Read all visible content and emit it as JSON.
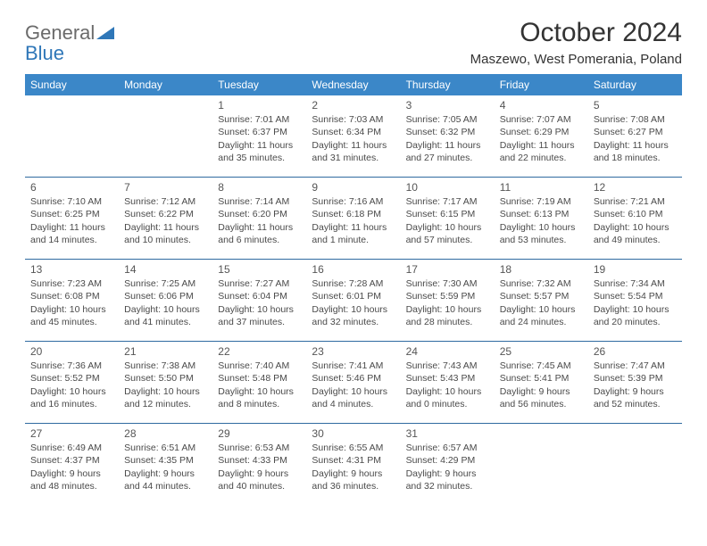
{
  "logo": {
    "text1": "General",
    "text2": "Blue"
  },
  "title": "October 2024",
  "location": "Maszewo, West Pomerania, Poland",
  "colors": {
    "header_bg": "#3b87c8",
    "header_text": "#ffffff",
    "rule": "#2f6aa0",
    "logo_gray": "#6b6b6b",
    "logo_blue": "#2f77b8",
    "body_text": "#4a4a4a"
  },
  "days": [
    "Sunday",
    "Monday",
    "Tuesday",
    "Wednesday",
    "Thursday",
    "Friday",
    "Saturday"
  ],
  "weeks": [
    [
      null,
      null,
      {
        "n": "1",
        "sr": "Sunrise: 7:01 AM",
        "ss": "Sunset: 6:37 PM",
        "d1": "Daylight: 11 hours",
        "d2": "and 35 minutes."
      },
      {
        "n": "2",
        "sr": "Sunrise: 7:03 AM",
        "ss": "Sunset: 6:34 PM",
        "d1": "Daylight: 11 hours",
        "d2": "and 31 minutes."
      },
      {
        "n": "3",
        "sr": "Sunrise: 7:05 AM",
        "ss": "Sunset: 6:32 PM",
        "d1": "Daylight: 11 hours",
        "d2": "and 27 minutes."
      },
      {
        "n": "4",
        "sr": "Sunrise: 7:07 AM",
        "ss": "Sunset: 6:29 PM",
        "d1": "Daylight: 11 hours",
        "d2": "and 22 minutes."
      },
      {
        "n": "5",
        "sr": "Sunrise: 7:08 AM",
        "ss": "Sunset: 6:27 PM",
        "d1": "Daylight: 11 hours",
        "d2": "and 18 minutes."
      }
    ],
    [
      {
        "n": "6",
        "sr": "Sunrise: 7:10 AM",
        "ss": "Sunset: 6:25 PM",
        "d1": "Daylight: 11 hours",
        "d2": "and 14 minutes."
      },
      {
        "n": "7",
        "sr": "Sunrise: 7:12 AM",
        "ss": "Sunset: 6:22 PM",
        "d1": "Daylight: 11 hours",
        "d2": "and 10 minutes."
      },
      {
        "n": "8",
        "sr": "Sunrise: 7:14 AM",
        "ss": "Sunset: 6:20 PM",
        "d1": "Daylight: 11 hours",
        "d2": "and 6 minutes."
      },
      {
        "n": "9",
        "sr": "Sunrise: 7:16 AM",
        "ss": "Sunset: 6:18 PM",
        "d1": "Daylight: 11 hours",
        "d2": "and 1 minute."
      },
      {
        "n": "10",
        "sr": "Sunrise: 7:17 AM",
        "ss": "Sunset: 6:15 PM",
        "d1": "Daylight: 10 hours",
        "d2": "and 57 minutes."
      },
      {
        "n": "11",
        "sr": "Sunrise: 7:19 AM",
        "ss": "Sunset: 6:13 PM",
        "d1": "Daylight: 10 hours",
        "d2": "and 53 minutes."
      },
      {
        "n": "12",
        "sr": "Sunrise: 7:21 AM",
        "ss": "Sunset: 6:10 PM",
        "d1": "Daylight: 10 hours",
        "d2": "and 49 minutes."
      }
    ],
    [
      {
        "n": "13",
        "sr": "Sunrise: 7:23 AM",
        "ss": "Sunset: 6:08 PM",
        "d1": "Daylight: 10 hours",
        "d2": "and 45 minutes."
      },
      {
        "n": "14",
        "sr": "Sunrise: 7:25 AM",
        "ss": "Sunset: 6:06 PM",
        "d1": "Daylight: 10 hours",
        "d2": "and 41 minutes."
      },
      {
        "n": "15",
        "sr": "Sunrise: 7:27 AM",
        "ss": "Sunset: 6:04 PM",
        "d1": "Daylight: 10 hours",
        "d2": "and 37 minutes."
      },
      {
        "n": "16",
        "sr": "Sunrise: 7:28 AM",
        "ss": "Sunset: 6:01 PM",
        "d1": "Daylight: 10 hours",
        "d2": "and 32 minutes."
      },
      {
        "n": "17",
        "sr": "Sunrise: 7:30 AM",
        "ss": "Sunset: 5:59 PM",
        "d1": "Daylight: 10 hours",
        "d2": "and 28 minutes."
      },
      {
        "n": "18",
        "sr": "Sunrise: 7:32 AM",
        "ss": "Sunset: 5:57 PM",
        "d1": "Daylight: 10 hours",
        "d2": "and 24 minutes."
      },
      {
        "n": "19",
        "sr": "Sunrise: 7:34 AM",
        "ss": "Sunset: 5:54 PM",
        "d1": "Daylight: 10 hours",
        "d2": "and 20 minutes."
      }
    ],
    [
      {
        "n": "20",
        "sr": "Sunrise: 7:36 AM",
        "ss": "Sunset: 5:52 PM",
        "d1": "Daylight: 10 hours",
        "d2": "and 16 minutes."
      },
      {
        "n": "21",
        "sr": "Sunrise: 7:38 AM",
        "ss": "Sunset: 5:50 PM",
        "d1": "Daylight: 10 hours",
        "d2": "and 12 minutes."
      },
      {
        "n": "22",
        "sr": "Sunrise: 7:40 AM",
        "ss": "Sunset: 5:48 PM",
        "d1": "Daylight: 10 hours",
        "d2": "and 8 minutes."
      },
      {
        "n": "23",
        "sr": "Sunrise: 7:41 AM",
        "ss": "Sunset: 5:46 PM",
        "d1": "Daylight: 10 hours",
        "d2": "and 4 minutes."
      },
      {
        "n": "24",
        "sr": "Sunrise: 7:43 AM",
        "ss": "Sunset: 5:43 PM",
        "d1": "Daylight: 10 hours",
        "d2": "and 0 minutes."
      },
      {
        "n": "25",
        "sr": "Sunrise: 7:45 AM",
        "ss": "Sunset: 5:41 PM",
        "d1": "Daylight: 9 hours",
        "d2": "and 56 minutes."
      },
      {
        "n": "26",
        "sr": "Sunrise: 7:47 AM",
        "ss": "Sunset: 5:39 PM",
        "d1": "Daylight: 9 hours",
        "d2": "and 52 minutes."
      }
    ],
    [
      {
        "n": "27",
        "sr": "Sunrise: 6:49 AM",
        "ss": "Sunset: 4:37 PM",
        "d1": "Daylight: 9 hours",
        "d2": "and 48 minutes."
      },
      {
        "n": "28",
        "sr": "Sunrise: 6:51 AM",
        "ss": "Sunset: 4:35 PM",
        "d1": "Daylight: 9 hours",
        "d2": "and 44 minutes."
      },
      {
        "n": "29",
        "sr": "Sunrise: 6:53 AM",
        "ss": "Sunset: 4:33 PM",
        "d1": "Daylight: 9 hours",
        "d2": "and 40 minutes."
      },
      {
        "n": "30",
        "sr": "Sunrise: 6:55 AM",
        "ss": "Sunset: 4:31 PM",
        "d1": "Daylight: 9 hours",
        "d2": "and 36 minutes."
      },
      {
        "n": "31",
        "sr": "Sunrise: 6:57 AM",
        "ss": "Sunset: 4:29 PM",
        "d1": "Daylight: 9 hours",
        "d2": "and 32 minutes."
      },
      null,
      null
    ]
  ]
}
